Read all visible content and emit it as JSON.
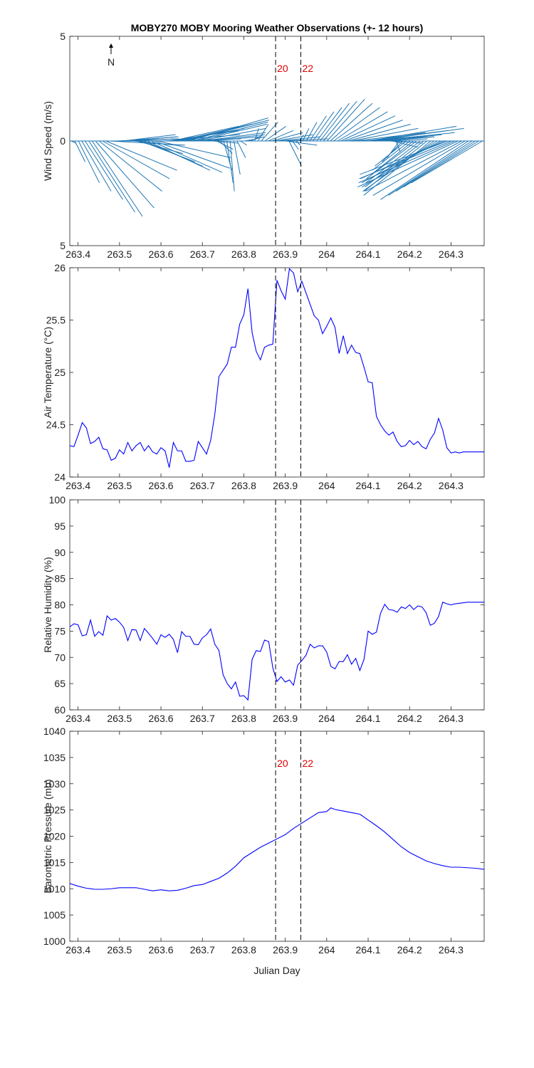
{
  "title": "MOBY270 MOBY Mooring Weather Observations (+- 12 hours)",
  "north_label": "N",
  "xlabel": "Julian Day",
  "markers": [
    {
      "x": 263.8767,
      "label": "20"
    },
    {
      "x": 263.9375,
      "label": "22"
    }
  ],
  "colors": {
    "wind": "#1f77b4",
    "line": "#0000ff",
    "marker_text": "#e00000",
    "axis": "#222222"
  },
  "chart_data": [
    {
      "type": "line",
      "id": "wind",
      "subtype": "wind-vector-stick",
      "ylabel": "Wind Speed (m/s)",
      "xlim": [
        263.38,
        264.38
      ],
      "ylim": [
        -5,
        5
      ],
      "yticks": [
        -5,
        0,
        5
      ],
      "ytick_labels": [
        "5",
        "0",
        "5"
      ],
      "xticks": [
        263.4,
        263.5,
        263.6,
        263.7,
        263.8,
        263.9,
        264.0,
        264.1,
        264.2,
        264.3
      ],
      "xtick_labels": [
        "263.4",
        "263.5",
        "263.6",
        "263.7",
        "263.8",
        "263.9",
        "264",
        "264.1",
        "264.2",
        "264.3"
      ],
      "show_markers": true,
      "x": [
        263.384,
        263.392,
        263.401,
        263.409,
        263.417,
        263.426,
        263.434,
        263.442,
        263.451,
        263.459,
        263.467,
        263.476,
        263.484,
        263.492,
        263.501,
        263.509,
        263.517,
        263.526,
        263.534,
        263.542,
        263.551,
        263.559,
        263.567,
        263.576,
        263.584,
        263.592,
        263.601,
        263.609,
        263.617,
        263.626,
        263.634,
        263.642,
        263.651,
        263.659,
        263.667,
        263.676,
        263.684,
        263.692,
        263.701,
        263.709,
        263.717,
        263.726,
        263.734,
        263.742,
        263.751,
        263.759,
        263.767,
        263.776,
        263.784,
        263.792,
        263.801,
        263.809,
        263.817,
        263.826,
        263.834,
        263.842,
        263.851,
        263.859,
        263.867,
        263.876,
        263.884,
        263.892,
        263.901,
        263.909,
        263.917,
        263.926,
        263.934,
        263.942,
        263.951,
        263.959,
        263.967,
        263.976,
        263.984,
        263.992,
        264.001,
        264.009,
        264.017,
        264.026,
        264.034,
        264.042,
        264.051,
        264.059,
        264.067,
        264.076,
        264.084,
        264.092,
        264.101,
        264.109,
        264.117,
        264.126,
        264.134,
        264.142,
        264.151,
        264.159,
        264.167,
        264.176,
        264.184,
        264.192,
        264.201,
        264.209,
        264.217,
        264.226,
        264.234,
        264.242,
        264.251,
        264.259,
        264.267,
        264.276,
        264.284,
        264.292,
        264.301,
        264.309,
        264.317,
        264.326,
        264.334,
        264.342,
        264.351,
        264.359,
        264.367,
        264.376
      ],
      "u": [
        0.2,
        0.5,
        1.0,
        1.4,
        1.8,
        2.2,
        2.4,
        2.8,
        3.0,
        3.2,
        3.4,
        3.6,
        3.2,
        3.0,
        2.8,
        2.5,
        2.4,
        2.2,
        2.0,
        2.2,
        2.6,
        2.8,
        3.0,
        3.4,
        3.6,
        3.5,
        3.8,
        3.6,
        3.4,
        3.2,
        3.3,
        3.5,
        3.8,
        4.0,
        3.8,
        3.6,
        3.4,
        3.2,
        3.0,
        2.8,
        2.4,
        1.2,
        0.8,
        0.6,
        0.4,
        0.3,
        0.2,
        0.3,
        0.4,
        0.3,
        0.6,
        0.8,
        0.6,
        0.2,
        0.5,
        0.8,
        1.0,
        1.2,
        1.5,
        1.8,
        2.0,
        2.2,
        1.5,
        0.6,
        0.3,
        0.2,
        0.2,
        0.3,
        0.5,
        0.8,
        1.0,
        1.2,
        1.4,
        1.6,
        1.8,
        2.0,
        2.2,
        2.4,
        2.6,
        2.8,
        3.0,
        3.2,
        3.4,
        3.6,
        3.8,
        4.0,
        4.2,
        4.4,
        3.8,
        3.0,
        2.5,
        2.0,
        1.6,
        1.2,
        0.2,
        -0.6,
        -1.0,
        -1.5,
        -1.8,
        -2.0,
        -2.4,
        -2.6,
        -2.8,
        -3.0,
        -3.2,
        -3.4,
        -3.6,
        -3.8,
        -4.0,
        -4.2,
        -4.4,
        -4.6,
        -4.8,
        -4.6,
        -4.4,
        -4.2,
        -4.0,
        -3.8,
        -3.6,
        -3.4
      ],
      "v": [
        -0.1,
        -1.0,
        -2.0,
        -2.4,
        -2.8,
        -3.4,
        -3.6,
        -3.2,
        -2.4,
        -1.8,
        -1.4,
        -0.2,
        0.0,
        0.1,
        0.2,
        0.3,
        0.2,
        0.1,
        -0.2,
        -0.6,
        -1.0,
        -1.2,
        -1.4,
        -1.5,
        -1.3,
        -0.8,
        0.1,
        0.3,
        0.5,
        0.7,
        0.6,
        0.8,
        0.9,
        1.0,
        1.1,
        0.9,
        0.8,
        0.6,
        0.4,
        0.3,
        0.2,
        -0.1,
        -0.4,
        -0.6,
        -1.4,
        -2.0,
        -2.4,
        -1.6,
        -0.8,
        -0.2,
        0.1,
        0.2,
        0.3,
        0.6,
        0.8,
        0.9,
        0.7,
        0.5,
        0.4,
        0.3,
        0.2,
        0.1,
        -0.2,
        -1.2,
        -0.4,
        -0.2,
        0.3,
        0.6,
        0.9,
        1.2,
        1.4,
        1.6,
        1.8,
        1.9,
        2.0,
        1.8,
        1.6,
        1.4,
        1.2,
        1.0,
        0.8,
        0.6,
        0.4,
        0.2,
        0.3,
        0.5,
        0.7,
        0.6,
        0.4,
        0.3,
        0.2,
        0.1,
        -0.1,
        -0.3,
        -0.5,
        -0.8,
        -1.0,
        -1.2,
        -1.4,
        -1.6,
        -1.8,
        -2.0,
        -2.2,
        -2.4,
        -2.6,
        -2.4,
        -2.2,
        -2.0,
        -1.8,
        -1.6,
        -1.8,
        -2.0,
        -2.2,
        -2.4,
        -2.6,
        -2.8,
        -2.6,
        -2.4,
        -2.2,
        -2.0
      ]
    },
    {
      "type": "line",
      "id": "air-temperature",
      "ylabel": "Air Temperature (°C)",
      "xlim": [
        263.38,
        264.38
      ],
      "ylim": [
        24,
        26
      ],
      "yticks": [
        24,
        24.5,
        25,
        25.5,
        26
      ],
      "ytick_labels": [
        "24",
        "24.5",
        "25",
        "25.5",
        "26"
      ],
      "xticks": [
        263.4,
        263.5,
        263.6,
        263.7,
        263.8,
        263.9,
        264.0,
        264.1,
        264.2,
        264.3
      ],
      "xtick_labels": [
        "263.4",
        "263.5",
        "263.6",
        "263.7",
        "263.8",
        "263.9",
        "264",
        "264.1",
        "264.2",
        "264.3"
      ],
      "show_markers": false,
      "x": [
        263.38,
        263.39,
        263.4,
        263.41,
        263.42,
        263.43,
        263.44,
        263.45,
        263.46,
        263.47,
        263.48,
        263.49,
        263.5,
        263.51,
        263.52,
        263.53,
        263.54,
        263.55,
        263.56,
        263.57,
        263.58,
        263.59,
        263.6,
        263.61,
        263.62,
        263.63,
        263.64,
        263.65,
        263.66,
        263.67,
        263.68,
        263.69,
        263.7,
        263.71,
        263.72,
        263.73,
        263.74,
        263.75,
        263.76,
        263.77,
        263.78,
        263.79,
        263.8,
        263.81,
        263.82,
        263.83,
        263.84,
        263.85,
        263.86,
        263.87,
        263.88,
        263.89,
        263.9,
        263.91,
        263.92,
        263.93,
        263.94,
        263.95,
        263.96,
        263.97,
        263.98,
        263.99,
        264.0,
        264.01,
        264.02,
        264.03,
        264.04,
        264.05,
        264.06,
        264.07,
        264.08,
        264.09,
        264.1,
        264.11,
        264.12,
        264.13,
        264.14,
        264.15,
        264.16,
        264.17,
        264.18,
        264.19,
        264.2,
        264.21,
        264.22,
        264.23,
        264.24,
        264.25,
        264.26,
        264.27,
        264.28,
        264.29,
        264.3,
        264.31,
        264.32,
        264.33,
        264.34,
        264.35,
        264.36,
        264.37,
        264.38
      ],
      "y": [
        24.3,
        24.29,
        24.4,
        24.52,
        24.47,
        24.32,
        24.34,
        24.38,
        24.27,
        24.26,
        24.16,
        24.18,
        24.26,
        24.22,
        24.33,
        24.25,
        24.3,
        24.33,
        24.25,
        24.3,
        24.24,
        24.22,
        24.28,
        24.25,
        24.09,
        24.33,
        24.25,
        24.25,
        24.15,
        24.15,
        24.16,
        24.34,
        24.28,
        24.22,
        24.35,
        24.6,
        24.96,
        25.02,
        25.08,
        25.24,
        25.24,
        25.46,
        25.55,
        25.8,
        25.38,
        25.2,
        25.12,
        25.24,
        25.26,
        25.27,
        25.88,
        25.78,
        25.7,
        25.99,
        25.95,
        25.77,
        25.87,
        25.76,
        25.65,
        25.54,
        25.5,
        25.37,
        25.44,
        25.52,
        25.43,
        25.18,
        25.35,
        25.18,
        25.26,
        25.19,
        25.18,
        25.05,
        24.91,
        24.9,
        24.58,
        24.5,
        24.44,
        24.4,
        24.43,
        24.34,
        24.29,
        24.3,
        24.35,
        24.31,
        24.34,
        24.29,
        24.27,
        24.36,
        24.42,
        24.56,
        24.45,
        24.28,
        24.23,
        24.24,
        24.23,
        24.24,
        24.24,
        24.24,
        24.24,
        24.24,
        24.24
      ]
    },
    {
      "type": "line",
      "id": "relative-humidity",
      "ylabel": "Relative Humidity (%)",
      "xlim": [
        263.38,
        264.38
      ],
      "ylim": [
        60,
        100
      ],
      "yticks": [
        60,
        65,
        70,
        75,
        80,
        85,
        90,
        95,
        100
      ],
      "ytick_labels": [
        "60",
        "65",
        "70",
        "75",
        "80",
        "85",
        "90",
        "95",
        "100"
      ],
      "xticks": [
        263.4,
        263.5,
        263.6,
        263.7,
        263.8,
        263.9,
        264.0,
        264.1,
        264.2,
        264.3
      ],
      "xtick_labels": [
        "263.4",
        "263.5",
        "263.6",
        "263.7",
        "263.8",
        "263.9",
        "264",
        "264.1",
        "264.2",
        "264.3"
      ],
      "show_markers": false,
      "x": [
        263.38,
        263.39,
        263.4,
        263.41,
        263.42,
        263.43,
        263.44,
        263.45,
        263.46,
        263.47,
        263.48,
        263.49,
        263.5,
        263.51,
        263.52,
        263.53,
        263.54,
        263.55,
        263.56,
        263.57,
        263.58,
        263.59,
        263.6,
        263.61,
        263.62,
        263.63,
        263.64,
        263.65,
        263.66,
        263.67,
        263.68,
        263.69,
        263.7,
        263.71,
        263.72,
        263.73,
        263.74,
        263.75,
        263.76,
        263.77,
        263.78,
        263.79,
        263.8,
        263.81,
        263.82,
        263.83,
        263.84,
        263.85,
        263.86,
        263.87,
        263.88,
        263.89,
        263.9,
        263.91,
        263.92,
        263.93,
        263.94,
        263.95,
        263.96,
        263.97,
        263.98,
        263.99,
        264.0,
        264.01,
        264.02,
        264.03,
        264.04,
        264.05,
        264.06,
        264.07,
        264.08,
        264.09,
        264.1,
        264.11,
        264.12,
        264.13,
        264.14,
        264.15,
        264.16,
        264.17,
        264.18,
        264.19,
        264.2,
        264.21,
        264.22,
        264.23,
        264.24,
        264.25,
        264.26,
        264.27,
        264.28,
        264.29,
        264.3,
        264.31,
        264.32,
        264.33,
        264.34,
        264.35,
        264.36,
        264.37,
        264.38
      ],
      "y": [
        75.8,
        76.4,
        76.2,
        74.1,
        74.3,
        77.1,
        74.0,
        74.9,
        74.2,
        77.9,
        77.1,
        77.4,
        76.7,
        75.7,
        73.2,
        75.3,
        75.2,
        73.2,
        75.5,
        74.6,
        73.6,
        72.5,
        74.3,
        73.8,
        74.4,
        73.4,
        70.9,
        74.9,
        74.0,
        74.0,
        72.5,
        72.4,
        73.7,
        74.3,
        75.4,
        72.5,
        71.3,
        66.7,
        65.0,
        64.0,
        65.3,
        62.6,
        62.7,
        61.9,
        69.6,
        71.3,
        71.1,
        73.3,
        73.0,
        68.0,
        65.4,
        66.3,
        65.3,
        65.7,
        64.7,
        68.5,
        69.4,
        70.4,
        72.5,
        71.8,
        72.2,
        72.2,
        71.0,
        68.3,
        67.8,
        69.2,
        69.2,
        70.5,
        68.7,
        69.8,
        67.5,
        69.6,
        75.0,
        74.4,
        74.8,
        78.4,
        80.1,
        79.1,
        79.0,
        78.6,
        79.6,
        79.3,
        80.0,
        79.1,
        79.8,
        79.6,
        78.5,
        76.1,
        76.5,
        77.8,
        80.5,
        80.2,
        80.0,
        80.2,
        80.3,
        80.4,
        80.5,
        80.5,
        80.5,
        80.5,
        80.5
      ]
    },
    {
      "type": "line",
      "id": "barometric-pressure",
      "ylabel": "Barometric Pressure (mb)",
      "xlim": [
        263.38,
        264.38
      ],
      "ylim": [
        1000,
        1040
      ],
      "yticks": [
        1000,
        1005,
        1010,
        1015,
        1020,
        1025,
        1030,
        1035,
        1040
      ],
      "ytick_labels": [
        "1000",
        "1005",
        "1010",
        "1015",
        "1020",
        "1025",
        "1030",
        "1035",
        "1040"
      ],
      "xticks": [
        263.4,
        263.5,
        263.6,
        263.7,
        263.8,
        263.9,
        264.0,
        264.1,
        264.2,
        264.3
      ],
      "xtick_labels": [
        "263.4",
        "263.5",
        "263.6",
        "263.7",
        "263.8",
        "263.9",
        "264",
        "264.1",
        "264.2",
        "264.3"
      ],
      "show_markers": true,
      "x": [
        263.38,
        263.4,
        263.42,
        263.44,
        263.46,
        263.48,
        263.5,
        263.52,
        263.54,
        263.56,
        263.58,
        263.6,
        263.62,
        263.64,
        263.66,
        263.68,
        263.7,
        263.72,
        263.74,
        263.76,
        263.78,
        263.8,
        263.82,
        263.84,
        263.86,
        263.88,
        263.9,
        263.92,
        263.94,
        263.96,
        263.98,
        264.0,
        264.01,
        264.02,
        264.04,
        264.06,
        264.08,
        264.1,
        264.12,
        264.14,
        264.16,
        264.18,
        264.2,
        264.22,
        264.24,
        264.26,
        264.28,
        264.3,
        264.32,
        264.34,
        264.36,
        264.38
      ],
      "y": [
        1011.0,
        1010.5,
        1010.1,
        1009.9,
        1009.9,
        1010.0,
        1010.2,
        1010.2,
        1010.2,
        1009.9,
        1009.6,
        1009.8,
        1009.6,
        1009.7,
        1010.1,
        1010.6,
        1010.8,
        1011.4,
        1012.0,
        1013.0,
        1014.3,
        1015.9,
        1016.9,
        1017.9,
        1018.7,
        1019.5,
        1020.3,
        1021.5,
        1022.5,
        1023.5,
        1024.5,
        1024.7,
        1025.4,
        1025.1,
        1024.8,
        1024.5,
        1024.2,
        1023.1,
        1022.0,
        1020.8,
        1019.4,
        1018.0,
        1016.9,
        1016.1,
        1015.3,
        1014.8,
        1014.4,
        1014.1,
        1014.1,
        1014.0,
        1013.9,
        1013.7
      ]
    }
  ]
}
